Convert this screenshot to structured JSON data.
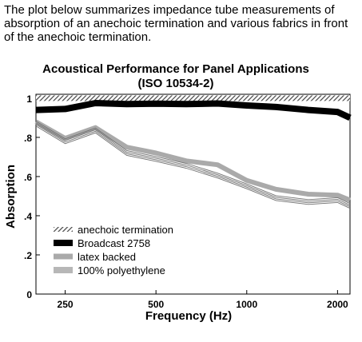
{
  "intro_text": "The plot below summarizes impedance tube measurements of absorption of an anechoic termination and various fabrics in front of the anechoic termination.",
  "chart_data": {
    "type": "line",
    "title": "Acoustical Performance for Panel Applications",
    "subtitle": "(ISO 10534-2)",
    "xlabel": "Frequency (Hz)",
    "ylabel": "Absorption",
    "x_scale": "log",
    "xlim": [
      200,
      2200
    ],
    "ylim": [
      0,
      1.02
    ],
    "x_ticks": [
      250,
      500,
      1000,
      2000
    ],
    "x_tick_labels": [
      "250",
      "500",
      "1000",
      "2000"
    ],
    "y_ticks": [
      0,
      0.2,
      0.4,
      0.6,
      0.8,
      1
    ],
    "y_tick_labels": [
      "0",
      ".2",
      ".4",
      ".6",
      ".8",
      "1"
    ],
    "grid": false,
    "legend_position": "lower-left",
    "x": [
      200,
      250,
      315,
      400,
      500,
      630,
      800,
      1000,
      1250,
      1600,
      2000,
      2200
    ],
    "series": [
      {
        "name": "anechoic termination",
        "style": "hatched",
        "color": "#555555",
        "values": [
          1.0,
          1.0,
          1.0,
          1.0,
          1.0,
          1.0,
          1.0,
          1.0,
          1.0,
          1.0,
          1.0,
          1.0
        ]
      },
      {
        "name": "Broadcast 2758",
        "style": "thick",
        "color": "#000000",
        "values": [
          0.94,
          0.945,
          0.975,
          0.97,
          0.972,
          0.97,
          0.973,
          0.963,
          0.955,
          0.94,
          0.93,
          0.9
        ]
      },
      {
        "name": "latex backed",
        "style": "gray",
        "color": "#aaaaaa",
        "values": [
          0.88,
          0.795,
          0.85,
          0.75,
          0.72,
          0.68,
          0.66,
          0.58,
          0.535,
          0.51,
          0.505,
          0.48
        ]
      },
      {
        "name": "100% polyethylene",
        "style": "multiline",
        "color": "#777777",
        "values": [
          0.87,
          0.78,
          0.835,
          0.72,
          0.69,
          0.655,
          0.605,
          0.55,
          0.49,
          0.47,
          0.48,
          0.45
        ]
      }
    ]
  }
}
